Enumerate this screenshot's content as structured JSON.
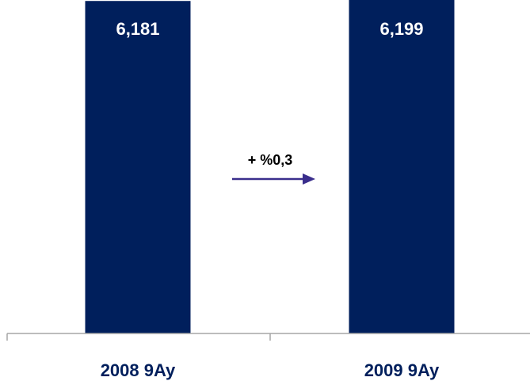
{
  "chart_data": {
    "type": "bar",
    "categories": [
      "2008 9Ay",
      "2009 9Ay"
    ],
    "values": [
      6181,
      6199
    ],
    "value_labels": [
      "6,181",
      "6,199"
    ],
    "annotation": "+ %0,3",
    "bar_color": "#001f5c",
    "arrow_color": "#3a2e8c",
    "title": "",
    "xlabel": "",
    "ylabel": ""
  }
}
